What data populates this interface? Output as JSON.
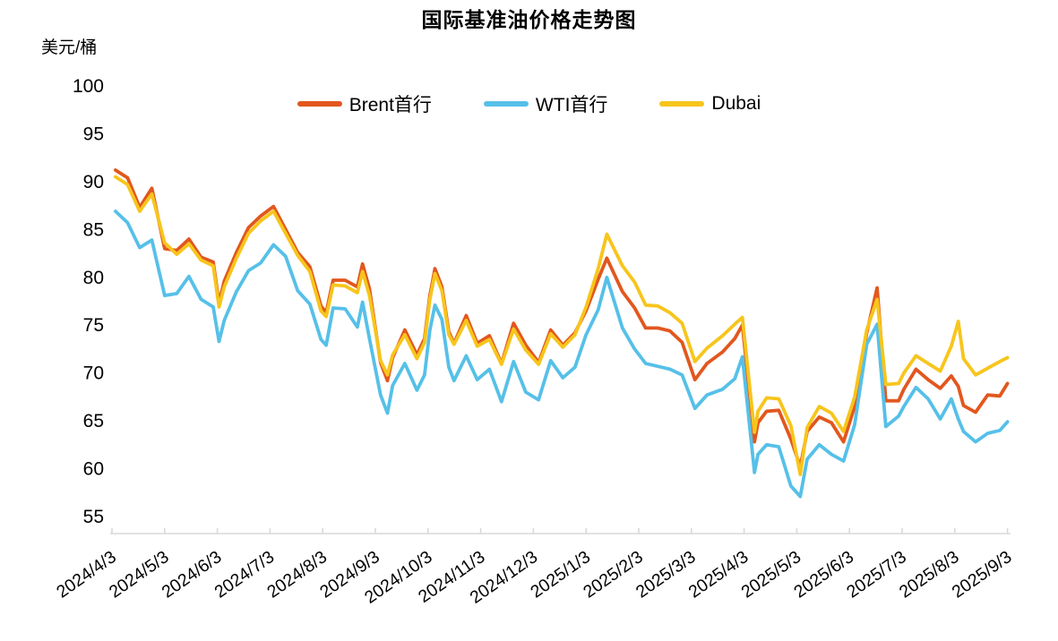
{
  "title": "国际基准油价格走势图",
  "y_axis_unit": "美元/桶",
  "colors": {
    "brent": "#E2571E",
    "wti": "#56C0E8",
    "dubai": "#F7C51C",
    "axis": "#D9D9D9",
    "text": "#000000"
  },
  "chart_data": {
    "type": "line",
    "title": "国际基准油价格走势图",
    "ylabel": "美元/桶",
    "xlabel": "",
    "grid": false,
    "legend_position": "top",
    "ylim": [
      53,
      100
    ],
    "y_ticks": [
      55,
      60,
      65,
      70,
      75,
      80,
      85,
      90,
      95,
      100
    ],
    "x_tick_labels": [
      "2024/4/3",
      "2024/5/3",
      "2024/6/3",
      "2024/7/3",
      "2024/8/3",
      "2024/9/3",
      "2024/10/3",
      "2024/11/3",
      "2024/12/3",
      "2025/1/3",
      "2025/2/3",
      "2025/3/3",
      "2025/4/3",
      "2025/5/3",
      "2025/6/3",
      "2025/7/3",
      "2025/8/3",
      "2025/9/3"
    ],
    "dates": [
      "2024-04-05",
      "2024-04-12",
      "2024-04-19",
      "2024-04-26",
      "2024-05-03",
      "2024-05-10",
      "2024-05-17",
      "2024-05-24",
      "2024-05-31",
      "2024-06-04",
      "2024-06-07",
      "2024-06-14",
      "2024-06-21",
      "2024-06-28",
      "2024-07-05",
      "2024-07-12",
      "2024-07-19",
      "2024-07-26",
      "2024-08-02",
      "2024-08-05",
      "2024-08-09",
      "2024-08-16",
      "2024-08-23",
      "2024-08-26",
      "2024-08-30",
      "2024-09-06",
      "2024-09-10",
      "2024-09-13",
      "2024-09-20",
      "2024-09-27",
      "2024-10-01",
      "2024-10-04",
      "2024-10-07",
      "2024-10-11",
      "2024-10-15",
      "2024-10-18",
      "2024-10-25",
      "2024-11-01",
      "2024-11-08",
      "2024-11-15",
      "2024-11-22",
      "2024-11-29",
      "2024-12-06",
      "2024-12-13",
      "2024-12-20",
      "2024-12-27",
      "2025-01-03",
      "2025-01-10",
      "2025-01-15",
      "2025-01-24",
      "2025-01-31",
      "2025-02-07",
      "2025-02-14",
      "2025-02-21",
      "2025-02-28",
      "2025-03-05",
      "2025-03-12",
      "2025-03-21",
      "2025-03-28",
      "2025-04-02",
      "2025-04-09",
      "2025-04-11",
      "2025-04-16",
      "2025-04-23",
      "2025-04-30",
      "2025-05-05",
      "2025-05-09",
      "2025-05-16",
      "2025-05-23",
      "2025-05-30",
      "2025-06-06",
      "2025-06-13",
      "2025-06-19",
      "2025-06-24",
      "2025-07-01",
      "2025-07-04",
      "2025-07-11",
      "2025-07-18",
      "2025-07-25",
      "2025-08-01",
      "2025-08-05",
      "2025-08-08",
      "2025-08-15",
      "2025-08-22",
      "2025-08-29",
      "2025-09-03"
    ],
    "series": [
      {
        "name": "Brent首行",
        "color": "#E2571E",
        "values": [
          91.2,
          90.4,
          87.3,
          89.3,
          83.0,
          82.8,
          84.0,
          82.1,
          81.6,
          77.3,
          79.6,
          82.6,
          85.2,
          86.4,
          87.4,
          85.0,
          82.6,
          81.1,
          77.0,
          76.3,
          79.7,
          79.7,
          79.0,
          81.4,
          78.8,
          71.1,
          69.2,
          71.6,
          74.5,
          71.9,
          73.6,
          78.0,
          80.9,
          79.0,
          74.3,
          73.1,
          76.0,
          73.1,
          73.9,
          71.0,
          75.2,
          72.9,
          71.1,
          74.5,
          72.9,
          74.2,
          76.5,
          79.8,
          82.0,
          78.5,
          76.8,
          74.7,
          74.7,
          74.4,
          73.2,
          69.3,
          71.0,
          72.2,
          73.6,
          75.0,
          62.8,
          64.8,
          66.0,
          66.1,
          63.1,
          60.2,
          63.9,
          65.4,
          64.8,
          62.8,
          66.5,
          74.2,
          78.9,
          67.1,
          67.1,
          68.3,
          70.4,
          69.3,
          68.4,
          69.7,
          68.6,
          66.6,
          65.9,
          67.7,
          67.6,
          68.9
        ]
      },
      {
        "name": "WTI首行",
        "color": "#56C0E8",
        "values": [
          86.9,
          85.7,
          83.1,
          83.9,
          78.1,
          78.3,
          80.1,
          77.7,
          76.9,
          73.3,
          75.5,
          78.5,
          80.7,
          81.5,
          83.4,
          82.2,
          78.6,
          77.2,
          73.5,
          72.9,
          76.8,
          76.7,
          74.8,
          77.4,
          73.6,
          67.7,
          65.8,
          68.7,
          71.0,
          68.2,
          69.8,
          74.4,
          77.1,
          75.6,
          70.6,
          69.2,
          71.8,
          69.3,
          70.4,
          67.0,
          71.2,
          68.0,
          67.2,
          71.3,
          69.5,
          70.6,
          74.0,
          76.6,
          80.0,
          74.7,
          72.5,
          71.0,
          70.7,
          70.4,
          69.8,
          66.3,
          67.7,
          68.3,
          69.4,
          71.7,
          59.6,
          61.5,
          62.5,
          62.3,
          58.2,
          57.1,
          61.0,
          62.5,
          61.5,
          60.8,
          64.6,
          73.0,
          75.1,
          64.4,
          65.5,
          66.5,
          68.5,
          67.3,
          65.2,
          67.3,
          65.2,
          63.9,
          62.8,
          63.7,
          64.0,
          64.9
        ]
      },
      {
        "name": "Dubai",
        "color": "#F7C51C",
        "values": [
          90.5,
          89.7,
          86.9,
          88.7,
          83.6,
          82.4,
          83.5,
          81.8,
          81.2,
          76.9,
          79.0,
          82.0,
          84.6,
          85.9,
          86.9,
          84.6,
          82.3,
          80.6,
          76.5,
          75.9,
          79.2,
          79.1,
          78.4,
          80.6,
          78.1,
          71.3,
          69.8,
          71.9,
          74.0,
          71.5,
          73.2,
          77.6,
          80.4,
          78.6,
          74.0,
          73.0,
          75.5,
          72.8,
          73.5,
          70.9,
          74.6,
          72.4,
          70.9,
          74.1,
          72.7,
          74.0,
          76.9,
          80.9,
          84.5,
          81.2,
          79.5,
          77.1,
          77.0,
          76.3,
          75.2,
          71.2,
          72.6,
          73.9,
          75.1,
          75.8,
          63.8,
          66.0,
          67.4,
          67.3,
          64.5,
          59.4,
          64.3,
          66.5,
          65.8,
          63.9,
          67.5,
          74.5,
          77.7,
          68.8,
          68.9,
          70.0,
          71.8,
          71.0,
          70.2,
          72.8,
          75.4,
          71.5,
          69.8,
          70.5,
          71.2,
          71.6
        ]
      }
    ]
  }
}
